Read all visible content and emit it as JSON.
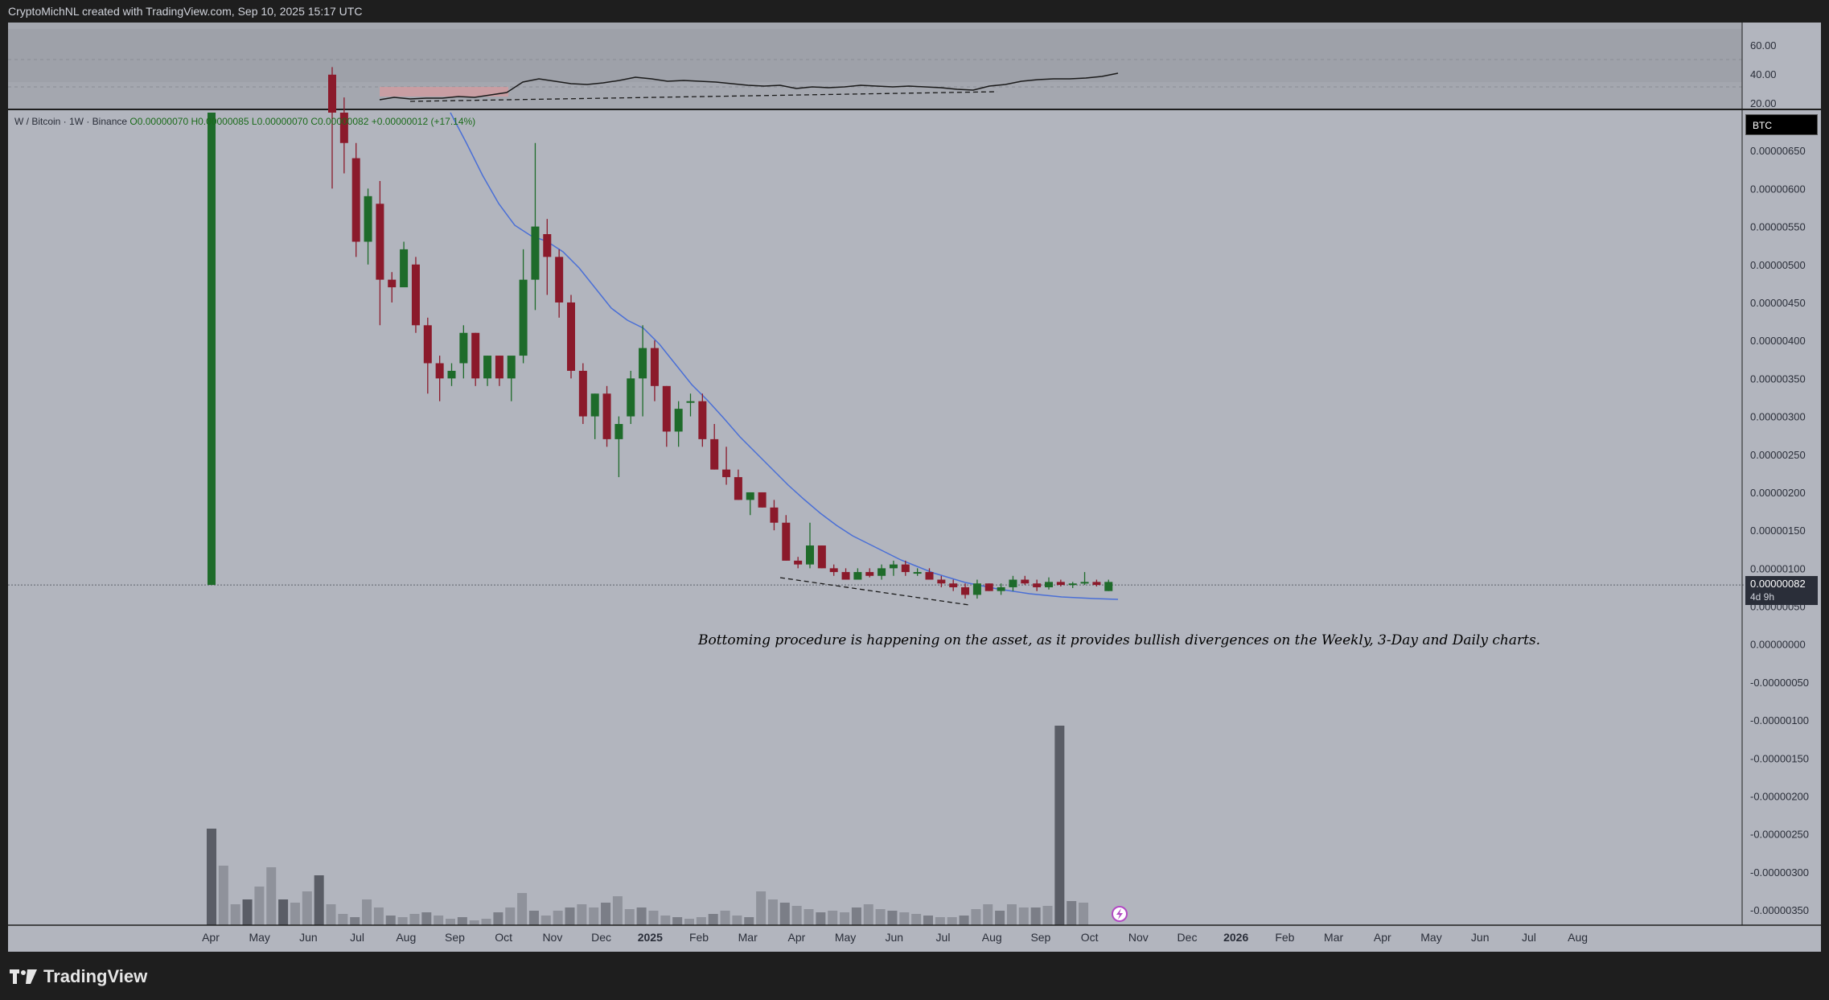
{
  "header": {
    "caption": "CryptoMichNL created with TradingView.com, Sep 10, 2025 15:17 UTC"
  },
  "legend": {
    "symbol": "W / Bitcoin · 1W · Binance",
    "open": "O0.00000070",
    "high": "H0.00000085",
    "low": "L0.00000070",
    "close": "C0.00000082",
    "change": "+0.00000012 (+17.14%)"
  },
  "annotation": "Bottoming procedure is happening on the asset, as it provides bullish divergences on the Weekly, 3-Day and Daily charts.",
  "currency_badge": "BTC",
  "last_price": {
    "value": "0.00000082",
    "countdown": "4d 9h"
  },
  "footer": {
    "brand": "TradingView"
  },
  "colors": {
    "up": "#1e6b2a",
    "down": "#8b1a2b",
    "ma": "#4a6fd6",
    "background": "#b2b5be",
    "frame": "#1e1e1e",
    "rsi": "#1a1a1a"
  },
  "chart_data": [
    {
      "type": "candlestick",
      "title": "",
      "x_labels": [
        "Apr",
        "May",
        "Jun",
        "Jul",
        "Aug",
        "Sep",
        "Oct",
        "Nov",
        "Dec",
        "2025",
        "Feb",
        "Mar",
        "Apr",
        "May",
        "Jun",
        "Jul",
        "Aug",
        "Sep",
        "Oct",
        "Nov",
        "Dec",
        "2026",
        "Feb",
        "Mar",
        "Apr",
        "May",
        "Jun",
        "Jul",
        "Aug"
      ],
      "y_labels": [
        "0.00000650",
        "0.00000600",
        "0.00000550",
        "0.00000500",
        "0.00000450",
        "0.00000400",
        "0.00000350",
        "0.00000300",
        "0.00000250",
        "0.00000200",
        "0.00000150",
        "0.00000100",
        "0.00000050",
        "0.00000000",
        "-0.00000050",
        "-0.00000100",
        "-0.00000150",
        "-0.00000200",
        "-0.00000250",
        "-0.00000300",
        "-0.00000350"
      ],
      "ylim_e8": [
        -370,
        700
      ],
      "candles_e8": [
        [
          null,
          700,
          78,
          78,
          80
        ],
        [
          750,
          760,
          600,
          700,
          null
        ],
        [
          700,
          720,
          620,
          660,
          null
        ],
        [
          640,
          660,
          510,
          530,
          null
        ],
        [
          530,
          600,
          500,
          590,
          null
        ],
        [
          580,
          610,
          420,
          480,
          null
        ],
        [
          480,
          490,
          450,
          470,
          null
        ],
        [
          470,
          530,
          500,
          520,
          null
        ],
        [
          500,
          510,
          410,
          420,
          null
        ],
        [
          420,
          430,
          330,
          370,
          null
        ],
        [
          370,
          380,
          320,
          350,
          null
        ],
        [
          350,
          370,
          340,
          360,
          null
        ],
        [
          370,
          420,
          350,
          410,
          null
        ],
        [
          410,
          410,
          340,
          350,
          null
        ],
        [
          350,
          380,
          340,
          380,
          null
        ],
        [
          380,
          380,
          340,
          350,
          null
        ],
        [
          350,
          370,
          320,
          380,
          null
        ],
        [
          380,
          520,
          370,
          480,
          null
        ],
        [
          480,
          660,
          440,
          550,
          null
        ],
        [
          540,
          560,
          460,
          510,
          null
        ],
        [
          510,
          520,
          430,
          450,
          null
        ],
        [
          450,
          460,
          350,
          360,
          null
        ],
        [
          360,
          370,
          290,
          300,
          null
        ],
        [
          300,
          330,
          270,
          330,
          null
        ],
        [
          330,
          340,
          260,
          270,
          null
        ],
        [
          270,
          300,
          220,
          290,
          null
        ],
        [
          300,
          360,
          290,
          350,
          null
        ],
        [
          350,
          420,
          300,
          390,
          null
        ],
        [
          390,
          400,
          320,
          340,
          null
        ],
        [
          340,
          340,
          260,
          280,
          null
        ],
        [
          280,
          320,
          260,
          310,
          null
        ],
        [
          320,
          330,
          300,
          320,
          null
        ],
        [
          320,
          330,
          260,
          270,
          null
        ],
        [
          270,
          290,
          230,
          230,
          null
        ],
        [
          230,
          260,
          210,
          220,
          null
        ],
        [
          220,
          230,
          190,
          190,
          null
        ],
        [
          190,
          200,
          170,
          200,
          null
        ],
        [
          200,
          200,
          180,
          180,
          null
        ],
        [
          180,
          190,
          150,
          160,
          null
        ],
        [
          160,
          170,
          110,
          110,
          null
        ],
        [
          110,
          115,
          100,
          105,
          null
        ],
        [
          105,
          160,
          100,
          130,
          null
        ],
        [
          130,
          130,
          100,
          100,
          null
        ],
        [
          100,
          105,
          90,
          95,
          null
        ],
        [
          95,
          100,
          85,
          85,
          null
        ],
        [
          85,
          100,
          85,
          95,
          null
        ],
        [
          95,
          100,
          88,
          90,
          null
        ],
        [
          90,
          105,
          85,
          100,
          null
        ],
        [
          100,
          110,
          90,
          105,
          null
        ],
        [
          105,
          110,
          90,
          95,
          null
        ],
        [
          95,
          100,
          90,
          95,
          null
        ],
        [
          95,
          100,
          85,
          85,
          null
        ],
        [
          85,
          90,
          75,
          80,
          null
        ],
        [
          80,
          85,
          70,
          75,
          null
        ],
        [
          75,
          80,
          60,
          65,
          null
        ],
        [
          65,
          85,
          60,
          80,
          null
        ],
        [
          80,
          80,
          70,
          70,
          null
        ],
        [
          70,
          80,
          65,
          75,
          null
        ],
        [
          75,
          90,
          70,
          85,
          null
        ],
        [
          85,
          90,
          78,
          80,
          null
        ],
        [
          80,
          85,
          70,
          75,
          null
        ],
        [
          75,
          88,
          72,
          82,
          null
        ],
        [
          82,
          85,
          76,
          78,
          null
        ],
        [
          78,
          82,
          74,
          80,
          null
        ],
        [
          80,
          95,
          78,
          82,
          null
        ],
        [
          82,
          85,
          76,
          78,
          null
        ],
        [
          70,
          85,
          70,
          82,
          null
        ]
      ],
      "ma_e8": [
        null,
        null,
        null,
        null,
        null,
        null,
        null,
        null,
        null,
        null,
        null,
        null,
        null,
        null,
        null,
        null,
        null,
        null,
        null,
        null,
        null,
        null,
        null,
        null,
        null,
        null,
        null,
        null,
        null,
        null,
        null,
        null,
        null,
        null,
        null,
        null,
        null,
        null,
        null,
        null,
        null,
        null,
        null,
        null,
        null,
        null,
        null,
        null,
        null,
        null,
        null,
        null,
        null,
        null,
        null,
        null,
        null,
        null,
        null,
        null,
        null,
        null,
        null,
        null,
        null,
        null,
        null
      ],
      "last_price": "0.00000082"
    }
  ]
}
